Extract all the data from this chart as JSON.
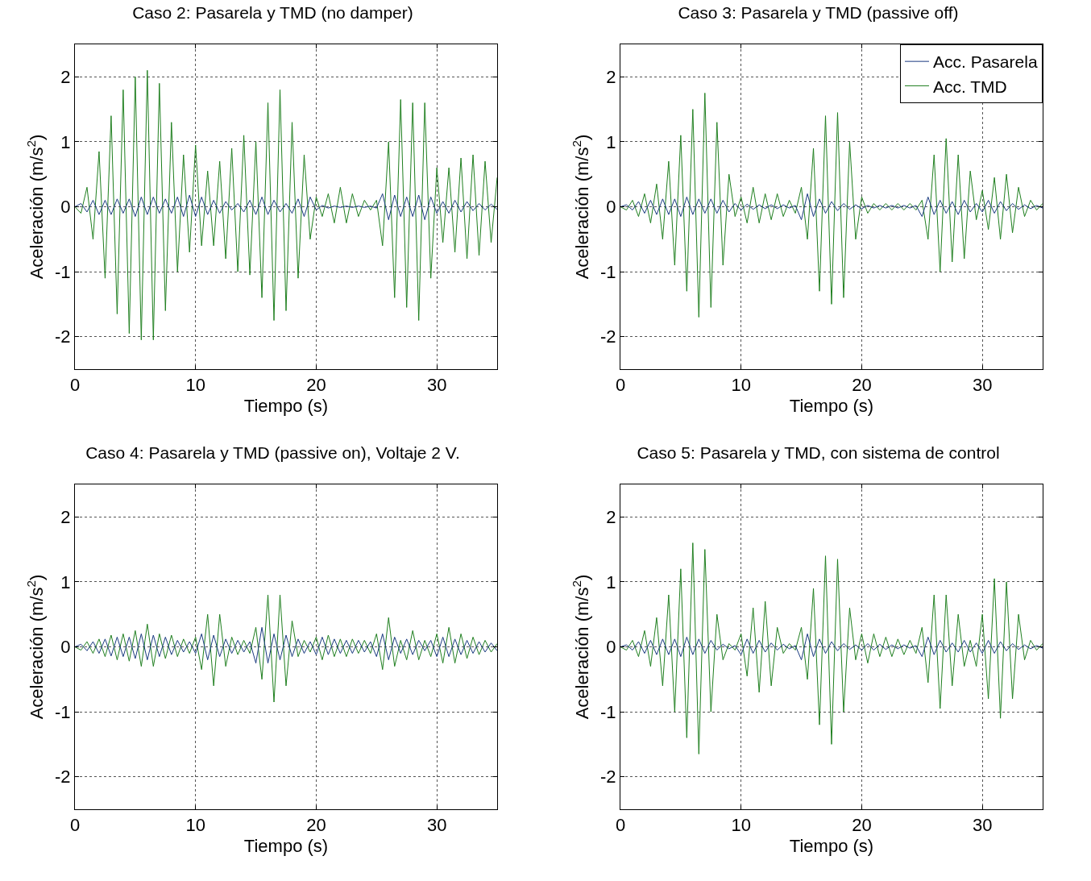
{
  "chart_data": [
    {
      "type": "line",
      "title": "Caso 2: Pasarela y TMD (no damper)",
      "xlabel": "Tiempo (s)",
      "ylabel": "Aceleración (m/s$^{2}$)",
      "xlim": [
        0,
        35
      ],
      "xticks": [
        0,
        10,
        20,
        30
      ],
      "ylim": [
        -2.5,
        2.5
      ],
      "yticks": [
        -2,
        -1,
        0,
        1,
        2
      ],
      "grid": true,
      "legend": false,
      "x": [
        0,
        0.5,
        1,
        1.5,
        2,
        2.5,
        3,
        3.5,
        4,
        4.5,
        5,
        5.5,
        6,
        6.5,
        7,
        7.5,
        8,
        8.5,
        9,
        9.5,
        10,
        10.5,
        11,
        11.5,
        12,
        12.5,
        13,
        13.5,
        14,
        14.5,
        15,
        15.5,
        16,
        16.5,
        17,
        17.5,
        18,
        18.5,
        19,
        19.5,
        20,
        20.5,
        21,
        21.5,
        22,
        22.5,
        23,
        23.5,
        24,
        24.5,
        25,
        25.5,
        26,
        26.5,
        27,
        27.5,
        28,
        28.5,
        29,
        29.5,
        30,
        30.5,
        31,
        31.5,
        32,
        32.5,
        33,
        33.5,
        34,
        34.5,
        35
      ],
      "series": [
        {
          "color": "#1a3a80",
          "values": [
            0,
            0.05,
            -0.08,
            0.1,
            -0.12,
            0.1,
            -0.12,
            0.12,
            -0.1,
            0.12,
            -0.15,
            0.15,
            -0.12,
            0.15,
            -0.1,
            0.12,
            -0.1,
            0.15,
            -0.15,
            0.18,
            -0.15,
            0.15,
            -0.12,
            0.1,
            -0.1,
            0.08,
            -0.05,
            0.05,
            -0.08,
            0.1,
            -0.12,
            0.15,
            -0.12,
            0.1,
            -0.08,
            0.05,
            -0.1,
            0.12,
            -0.15,
            0.15,
            -0.05,
            0.02,
            -0.02,
            0.01,
            -0.01,
            0.01,
            -0.01,
            0.01,
            -0.01,
            0.01,
            -0.02,
            0.2,
            -0.2,
            0.18,
            -0.15,
            0.15,
            -0.15,
            0.18,
            -0.2,
            0.15,
            -0.1,
            0.08,
            -0.1,
            0.1,
            -0.08,
            0.08,
            -0.06,
            0.05,
            -0.05,
            0.04,
            -0.04
          ]
        },
        {
          "color": "#1f7f1f",
          "values": [
            0,
            -0.1,
            0.3,
            -0.5,
            0.85,
            -1.1,
            1.4,
            -1.65,
            1.8,
            -1.95,
            2.0,
            -2.05,
            2.1,
            -2.05,
            1.9,
            -1.6,
            1.3,
            -1.0,
            0.8,
            -0.7,
            0.95,
            -0.6,
            0.55,
            -0.6,
            0.7,
            -0.8,
            0.9,
            -1.0,
            1.1,
            -1.05,
            1.0,
            -1.4,
            1.6,
            -1.75,
            1.8,
            -1.6,
            1.3,
            -1.1,
            0.8,
            -0.5,
            0.15,
            -0.15,
            0.2,
            -0.25,
            0.3,
            -0.25,
            0.2,
            -0.15,
            0.1,
            -0.05,
            0.1,
            -0.6,
            1.0,
            -1.4,
            1.65,
            -1.55,
            1.6,
            -1.75,
            1.6,
            -1.1,
            0.6,
            -0.55,
            0.6,
            -0.7,
            0.75,
            -0.8,
            0.8,
            -0.75,
            0.7,
            -0.55,
            0.45
          ]
        }
      ]
    },
    {
      "type": "line",
      "title": "Caso 3: Pasarela y TMD (passive off)",
      "xlabel": "Tiempo (s)",
      "ylabel": "Aceleración (m/s$^{2}$)",
      "xlim": [
        0,
        35
      ],
      "xticks": [
        0,
        10,
        20,
        30
      ],
      "ylim": [
        -2.5,
        2.5
      ],
      "yticks": [
        -2,
        -1,
        0,
        1,
        2
      ],
      "grid": true,
      "legend": "top right",
      "x": [
        0,
        0.5,
        1,
        1.5,
        2,
        2.5,
        3,
        3.5,
        4,
        4.5,
        5,
        5.5,
        6,
        6.5,
        7,
        7.5,
        8,
        8.5,
        9,
        9.5,
        10,
        10.5,
        11,
        11.5,
        12,
        12.5,
        13,
        13.5,
        14,
        14.5,
        15,
        15.5,
        16,
        16.5,
        17,
        17.5,
        18,
        18.5,
        19,
        19.5,
        20,
        20.5,
        21,
        21.5,
        22,
        22.5,
        23,
        23.5,
        24,
        24.5,
        25,
        25.5,
        26,
        26.5,
        27,
        27.5,
        28,
        28.5,
        29,
        29.5,
        30,
        30.5,
        31,
        31.5,
        32,
        32.5,
        33,
        33.5,
        34,
        34.5,
        35
      ],
      "series": [
        {
          "name": "Acc. Pasarela",
          "color": "#1a3a80",
          "values": [
            0,
            0.03,
            -0.05,
            0.08,
            -0.1,
            0.1,
            -0.12,
            0.12,
            -0.12,
            0.12,
            -0.15,
            0.15,
            -0.12,
            0.12,
            -0.1,
            0.12,
            -0.1,
            0.1,
            -0.08,
            0.05,
            -0.05,
            0.04,
            -0.04,
            0.03,
            -0.03,
            0.03,
            -0.03,
            0.03,
            -0.02,
            0.02,
            -0.2,
            0.2,
            -0.15,
            0.12,
            -0.1,
            0.08,
            -0.06,
            0.05,
            -0.04,
            0.03,
            -0.03,
            0.02,
            -0.02,
            0.02,
            -0.02,
            0.02,
            -0.02,
            0.02,
            -0.02,
            0.02,
            -0.15,
            0.15,
            -0.12,
            0.1,
            -0.1,
            0.08,
            -0.12,
            0.1,
            -0.08,
            0.05,
            -0.08,
            0.1,
            -0.1,
            0.08,
            -0.06,
            0.05,
            -0.04,
            0.03,
            -0.03,
            0.02,
            -0.02
          ]
        },
        {
          "name": "Acc. TMD",
          "color": "#1f7f1f",
          "values": [
            0,
            -0.05,
            0.1,
            -0.15,
            0.2,
            -0.25,
            0.35,
            -0.5,
            0.7,
            -0.9,
            1.1,
            -1.3,
            1.5,
            -1.7,
            1.75,
            -1.55,
            1.3,
            -0.9,
            0.5,
            -0.15,
            0.15,
            -0.25,
            0.3,
            -0.25,
            0.2,
            -0.2,
            0.2,
            -0.15,
            0.1,
            -0.1,
            0.3,
            -0.5,
            0.9,
            -1.3,
            1.4,
            -1.5,
            1.45,
            -1.4,
            1.0,
            -0.5,
            0.15,
            -0.1,
            0.05,
            -0.05,
            0.05,
            -0.05,
            0.05,
            -0.05,
            0.05,
            -0.05,
            0.1,
            -0.5,
            0.8,
            -1.0,
            1.05,
            -0.85,
            0.8,
            -0.8,
            0.55,
            -0.2,
            0.25,
            -0.35,
            0.45,
            -0.5,
            0.5,
            -0.4,
            0.3,
            -0.15,
            0.1,
            -0.05,
            0.05
          ]
        }
      ]
    },
    {
      "type": "line",
      "title": "Caso 4: Pasarela y TMD (passive on), Voltaje 2 V.",
      "xlabel": "Tiempo (s)",
      "ylabel": "Aceleración (m/s$^{2}$)",
      "xlim": [
        0,
        35
      ],
      "xticks": [
        0,
        10,
        20,
        30
      ],
      "ylim": [
        -2.5,
        2.5
      ],
      "yticks": [
        -2,
        -1,
        0,
        1,
        2
      ],
      "grid": true,
      "legend": false,
      "x": [
        0,
        0.5,
        1,
        1.5,
        2,
        2.5,
        3,
        3.5,
        4,
        4.5,
        5,
        5.5,
        6,
        6.5,
        7,
        7.5,
        8,
        8.5,
        9,
        9.5,
        10,
        10.5,
        11,
        11.5,
        12,
        12.5,
        13,
        13.5,
        14,
        14.5,
        15,
        15.5,
        16,
        16.5,
        17,
        17.5,
        18,
        18.5,
        19,
        19.5,
        20,
        20.5,
        21,
        21.5,
        22,
        22.5,
        23,
        23.5,
        24,
        24.5,
        25,
        25.5,
        26,
        26.5,
        27,
        27.5,
        28,
        28.5,
        29,
        29.5,
        30,
        30.5,
        31,
        31.5,
        32,
        32.5,
        33,
        33.5,
        34,
        34.5,
        35
      ],
      "series": [
        {
          "color": "#1a3a80",
          "values": [
            0,
            0.04,
            -0.06,
            0.08,
            -0.1,
            0.12,
            -0.14,
            0.15,
            -0.15,
            0.15,
            -0.18,
            0.2,
            -0.2,
            0.18,
            -0.15,
            0.15,
            -0.12,
            0.1,
            -0.08,
            0.08,
            -0.1,
            0.2,
            -0.2,
            0.18,
            -0.15,
            0.12,
            -0.1,
            0.1,
            -0.08,
            0.08,
            -0.25,
            0.3,
            -0.25,
            0.2,
            -0.2,
            0.18,
            -0.15,
            0.12,
            -0.1,
            0.08,
            -0.12,
            0.15,
            -0.12,
            0.12,
            -0.1,
            0.1,
            -0.1,
            0.1,
            -0.08,
            0.08,
            -0.15,
            0.2,
            -0.2,
            0.15,
            -0.1,
            0.12,
            -0.12,
            0.1,
            -0.06,
            0.1,
            -0.15,
            0.15,
            -0.15,
            0.12,
            -0.12,
            0.1,
            -0.1,
            0.08,
            -0.08,
            0.06,
            -0.06
          ]
        },
        {
          "color": "#1f7f1f",
          "values": [
            0,
            -0.05,
            0.08,
            -0.1,
            0.12,
            -0.15,
            0.18,
            -0.2,
            0.2,
            -0.22,
            0.25,
            -0.3,
            0.35,
            -0.3,
            0.2,
            -0.18,
            0.18,
            -0.15,
            0.12,
            -0.1,
            0.15,
            -0.35,
            0.5,
            -0.6,
            0.5,
            -0.3,
            0.15,
            -0.12,
            0.1,
            -0.1,
            0.3,
            -0.5,
            0.8,
            -0.85,
            0.8,
            -0.6,
            0.4,
            -0.15,
            0.1,
            -0.08,
            0.15,
            -0.2,
            0.18,
            -0.15,
            0.12,
            -0.15,
            0.12,
            -0.1,
            0.1,
            -0.1,
            0.2,
            -0.35,
            0.45,
            -0.3,
            0.1,
            -0.2,
            0.25,
            -0.2,
            0.1,
            -0.15,
            0.2,
            -0.25,
            0.3,
            -0.25,
            0.2,
            -0.18,
            0.15,
            -0.12,
            0.1,
            -0.08,
            0.05
          ]
        }
      ]
    },
    {
      "type": "line",
      "title": "Caso 5: Pasarela y TMD, con sistema de control",
      "xlabel": "Tiempo (s)",
      "ylabel": "Aceleración (m/s$^{2}$)",
      "xlim": [
        0,
        35
      ],
      "xticks": [
        0,
        10,
        20,
        30
      ],
      "ylim": [
        -2.5,
        2.5
      ],
      "yticks": [
        -2,
        -1,
        0,
        1,
        2
      ],
      "grid": true,
      "legend": false,
      "x": [
        0,
        0.5,
        1,
        1.5,
        2,
        2.5,
        3,
        3.5,
        4,
        4.5,
        5,
        5.5,
        6,
        6.5,
        7,
        7.5,
        8,
        8.5,
        9,
        9.5,
        10,
        10.5,
        11,
        11.5,
        12,
        12.5,
        13,
        13.5,
        14,
        14.5,
        15,
        15.5,
        16,
        16.5,
        17,
        17.5,
        18,
        18.5,
        19,
        19.5,
        20,
        20.5,
        21,
        21.5,
        22,
        22.5,
        23,
        23.5,
        24,
        24.5,
        25,
        25.5,
        26,
        26.5,
        27,
        27.5,
        28,
        28.5,
        29,
        29.5,
        30,
        30.5,
        31,
        31.5,
        32,
        32.5,
        33,
        33.5,
        34,
        34.5,
        35
      ],
      "series": [
        {
          "color": "#1a3a80",
          "values": [
            0,
            0.03,
            -0.05,
            0.08,
            -0.1,
            0.1,
            -0.12,
            0.12,
            -0.12,
            0.12,
            -0.15,
            0.15,
            -0.12,
            0.12,
            -0.1,
            0.1,
            -0.05,
            0.04,
            -0.03,
            0.02,
            -0.12,
            0.12,
            -0.1,
            0.1,
            -0.08,
            0.06,
            -0.05,
            0.04,
            -0.03,
            0.02,
            -0.2,
            0.2,
            -0.15,
            0.12,
            -0.1,
            0.08,
            -0.06,
            0.05,
            -0.04,
            0.03,
            -0.05,
            0.05,
            -0.05,
            0.04,
            -0.04,
            0.03,
            -0.03,
            0.03,
            -0.02,
            0.02,
            -0.15,
            0.15,
            -0.12,
            0.1,
            -0.08,
            0.06,
            -0.08,
            0.1,
            -0.08,
            0.06,
            -0.1,
            0.1,
            -0.1,
            0.08,
            -0.06,
            0.05,
            -0.04,
            0.03,
            -0.03,
            0.02,
            -0.02
          ]
        },
        {
          "color": "#1f7f1f",
          "values": [
            0,
            -0.05,
            0.1,
            -0.15,
            0.25,
            -0.3,
            0.45,
            -0.6,
            0.8,
            -1.0,
            1.2,
            -1.4,
            1.6,
            -1.65,
            1.5,
            -1.0,
            0.5,
            -0.2,
            0.05,
            -0.05,
            0.2,
            -0.45,
            0.6,
            -0.7,
            0.7,
            -0.6,
            0.3,
            -0.1,
            0.05,
            -0.05,
            0.3,
            -0.5,
            0.9,
            -1.2,
            1.4,
            -1.5,
            1.35,
            -1.0,
            0.6,
            -0.2,
            0.2,
            -0.25,
            0.2,
            -0.15,
            0.15,
            -0.15,
            0.12,
            -0.12,
            0.1,
            -0.1,
            0.3,
            -0.55,
            0.8,
            -0.95,
            0.8,
            -0.6,
            0.5,
            -0.3,
            0.1,
            -0.3,
            0.5,
            -0.8,
            1.05,
            -1.1,
            1.0,
            -0.8,
            0.5,
            -0.2,
            0.1,
            -0.05,
            0.05
          ]
        }
      ]
    }
  ]
}
